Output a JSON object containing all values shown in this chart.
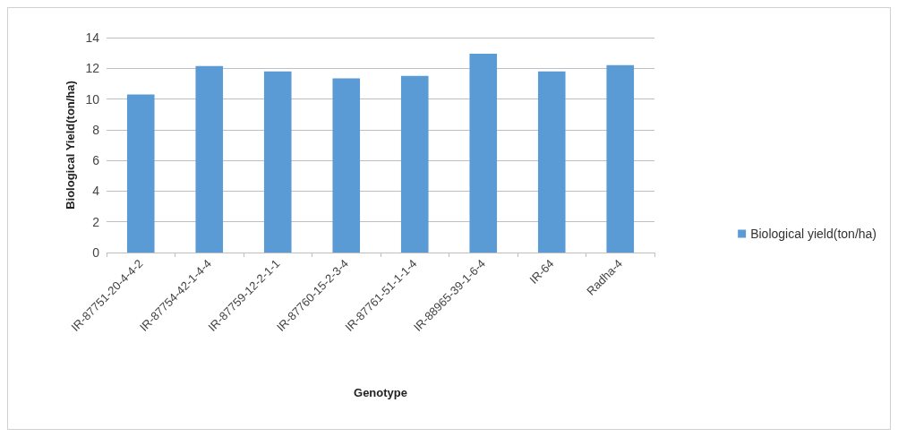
{
  "chart_data": {
    "type": "bar",
    "xlabel": "Genotype",
    "ylabel": "Biological Yield(ton/ha)",
    "categories": [
      "IR-87751-20-4-4-2",
      "IR-87754-42-1-4-4",
      "IR-87759-12-2-1-1",
      "IR-87760-15-2-3-4",
      "IR-87761-51-1-1-4",
      "IR-88965-39-1-6-4",
      "IR-64",
      "Radha-4"
    ],
    "series": [
      {
        "name": "Biological yield(ton/ha)",
        "color": "#5b9bd5",
        "values": [
          10.3,
          12.15,
          11.8,
          11.35,
          11.5,
          12.95,
          11.8,
          12.2
        ]
      }
    ],
    "ylim": [
      0,
      14
    ],
    "yticks": [
      0,
      2,
      4,
      6,
      8,
      10,
      12,
      14
    ],
    "grid": "y",
    "legend": "right"
  }
}
